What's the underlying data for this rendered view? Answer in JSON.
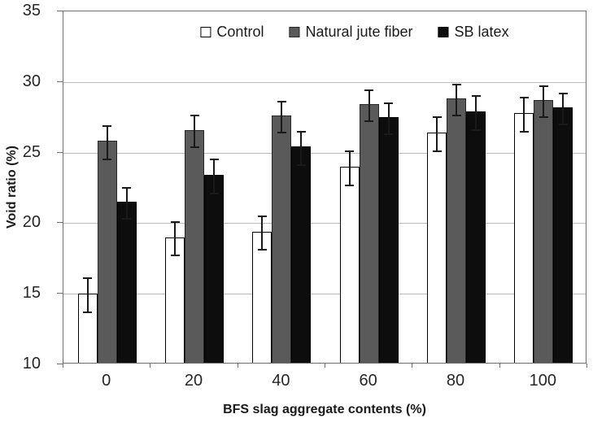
{
  "chart_data": {
    "type": "bar",
    "title": "",
    "xlabel": "BFS slag aggregate contents (%)",
    "ylabel": "Void ratio (%)",
    "categories": [
      "0",
      "20",
      "40",
      "60",
      "80",
      "100"
    ],
    "ylim": [
      10,
      35
    ],
    "yticks": [
      10,
      15,
      20,
      25,
      30,
      35
    ],
    "grid": "horizontal",
    "legend_position": "top-center-inside",
    "axis_color": "#6e6e6e",
    "gridline_color": "#b9b9b9",
    "error_bar_color": "#1a1a1a",
    "series": [
      {
        "name": "Control",
        "color": "#ffffff",
        "border": "#000000",
        "values": [
          14.9,
          18.9,
          19.3,
          23.9,
          26.3,
          27.7
        ],
        "errors": [
          1.2,
          1.2,
          1.2,
          1.2,
          1.2,
          1.2
        ]
      },
      {
        "name": "Natural jute fiber",
        "color": "#5a5a5a",
        "border": "#262626",
        "values": [
          25.7,
          26.5,
          27.5,
          28.3,
          28.7,
          28.6
        ],
        "errors": [
          1.2,
          1.1,
          1.1,
          1.1,
          1.1,
          1.1
        ]
      },
      {
        "name": "SB latex",
        "color": "#0d0d0d",
        "border": "#000000",
        "values": [
          21.4,
          23.3,
          25.3,
          27.4,
          27.8,
          28.1
        ],
        "errors": [
          1.1,
          1.2,
          1.2,
          1.1,
          1.2,
          1.1
        ]
      }
    ]
  }
}
